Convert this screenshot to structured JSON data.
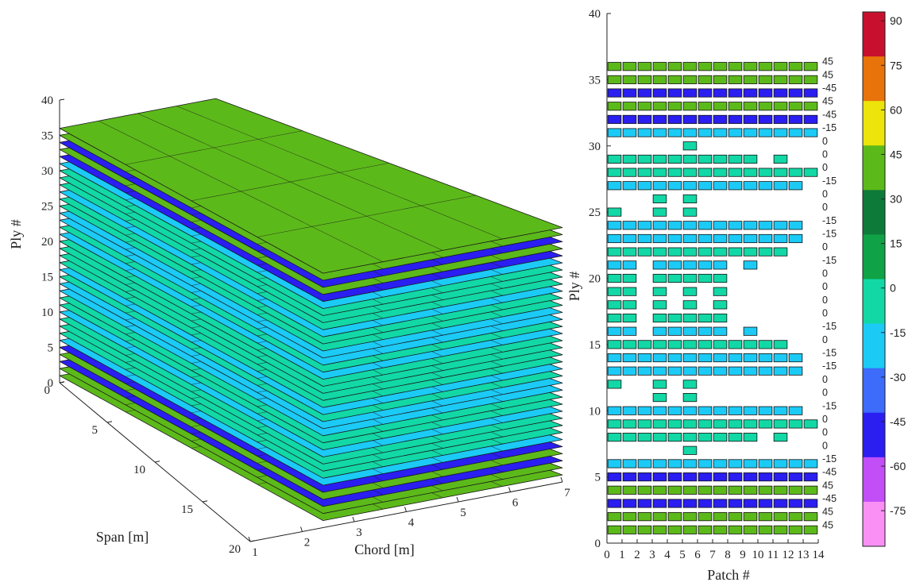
{
  "chart_data": [
    {
      "type": "3d-surface-stack",
      "zlabel": "Ply #",
      "xlabel": "Chord [m]",
      "ylabel": "Span [m]",
      "zticks": [
        "0",
        "5",
        "10",
        "15",
        "20",
        "25",
        "30",
        "35",
        "40"
      ],
      "xticks": [
        "1",
        "2",
        "3",
        "4",
        "5",
        "6",
        "7"
      ],
      "yticks": [
        "0",
        "5",
        "10",
        "15",
        "20"
      ],
      "zlim": [
        0,
        40
      ],
      "xlim": [
        1,
        7
      ],
      "ylim": [
        0,
        20
      ],
      "layers": [
        {
          "z": 1,
          "angle": 45
        },
        {
          "z": 2,
          "angle": 45
        },
        {
          "z": 3,
          "angle": -45
        },
        {
          "z": 4,
          "angle": 45
        },
        {
          "z": 5,
          "angle": -45
        },
        {
          "z": 6,
          "angle": -15
        },
        {
          "z": 7,
          "angle": 0
        },
        {
          "z": 8,
          "angle": 0
        },
        {
          "z": 9,
          "angle": 0
        },
        {
          "z": 10,
          "angle": -15
        },
        {
          "z": 11,
          "angle": 0
        },
        {
          "z": 12,
          "angle": 0
        },
        {
          "z": 13,
          "angle": -15
        },
        {
          "z": 14,
          "angle": -15
        },
        {
          "z": 15,
          "angle": 0
        },
        {
          "z": 16,
          "angle": -15
        },
        {
          "z": 17,
          "angle": 0
        },
        {
          "z": 18,
          "angle": 0
        },
        {
          "z": 19,
          "angle": 0
        },
        {
          "z": 20,
          "angle": 0
        },
        {
          "z": 21,
          "angle": -15
        },
        {
          "z": 22,
          "angle": 0
        },
        {
          "z": 23,
          "angle": -15
        },
        {
          "z": 24,
          "angle": -15
        },
        {
          "z": 25,
          "angle": 0
        },
        {
          "z": 26,
          "angle": 0
        },
        {
          "z": 27,
          "angle": -15
        },
        {
          "z": 28,
          "angle": 0
        },
        {
          "z": 29,
          "angle": 0
        },
        {
          "z": 30,
          "angle": 0
        },
        {
          "z": 31,
          "angle": -15
        },
        {
          "z": 32,
          "angle": -45
        },
        {
          "z": 33,
          "angle": 45
        },
        {
          "z": 34,
          "angle": -45
        },
        {
          "z": 35,
          "angle": 45
        },
        {
          "z": 36,
          "angle": 45
        }
      ]
    },
    {
      "type": "heatmap",
      "xlabel": "Patch #",
      "ylabel": "Ply #",
      "xticks": [
        "0",
        "1",
        "2",
        "3",
        "4",
        "5",
        "6",
        "7",
        "8",
        "9",
        "10",
        "11",
        "12",
        "13",
        "14"
      ],
      "yticks": [
        "0",
        "5",
        "10",
        "15",
        "20",
        "25",
        "30",
        "35",
        "40"
      ],
      "xlim": [
        0,
        14
      ],
      "ylim": [
        0,
        40
      ],
      "plies": [
        {
          "ply": 1,
          "label": "45",
          "angle": 45,
          "patches": [
            0,
            1,
            2,
            3,
            4,
            5,
            6,
            7,
            8,
            9,
            10,
            11,
            12,
            13
          ]
        },
        {
          "ply": 2,
          "label": "45",
          "angle": 45,
          "patches": [
            0,
            1,
            2,
            3,
            4,
            5,
            6,
            7,
            8,
            9,
            10,
            11,
            12,
            13
          ]
        },
        {
          "ply": 3,
          "label": "-45",
          "angle": -45,
          "patches": [
            0,
            1,
            2,
            3,
            4,
            5,
            6,
            7,
            8,
            9,
            10,
            11,
            12,
            13
          ]
        },
        {
          "ply": 4,
          "label": "45",
          "angle": 45,
          "patches": [
            0,
            1,
            2,
            3,
            4,
            5,
            6,
            7,
            8,
            9,
            10,
            11,
            12,
            13
          ]
        },
        {
          "ply": 5,
          "label": "-45",
          "angle": -45,
          "patches": [
            0,
            1,
            2,
            3,
            4,
            5,
            6,
            7,
            8,
            9,
            10,
            11,
            12,
            13
          ]
        },
        {
          "ply": 6,
          "label": "-15",
          "angle": -15,
          "patches": [
            0,
            1,
            2,
            3,
            4,
            5,
            6,
            7,
            8,
            9,
            10,
            11,
            12,
            13
          ]
        },
        {
          "ply": 7,
          "label": "0",
          "angle": 0,
          "patches": [
            5
          ]
        },
        {
          "ply": 8,
          "label": "0",
          "angle": 0,
          "patches": [
            0,
            1,
            2,
            3,
            4,
            5,
            6,
            7,
            8,
            9,
            11
          ]
        },
        {
          "ply": 9,
          "label": "0",
          "angle": 0,
          "patches": [
            0,
            1,
            2,
            3,
            4,
            5,
            6,
            7,
            8,
            9,
            10,
            11,
            12,
            13
          ]
        },
        {
          "ply": 10,
          "label": "-15",
          "angle": -15,
          "patches": [
            0,
            1,
            2,
            3,
            4,
            5,
            6,
            7,
            8,
            9,
            10,
            11,
            12
          ]
        },
        {
          "ply": 11,
          "label": "0",
          "angle": 0,
          "patches": [
            3,
            5
          ]
        },
        {
          "ply": 12,
          "label": "0",
          "angle": 0,
          "patches": [
            0,
            3,
            5
          ]
        },
        {
          "ply": 13,
          "label": "-15",
          "angle": -15,
          "patches": [
            0,
            1,
            2,
            3,
            4,
            5,
            6,
            7,
            8,
            9,
            10,
            11,
            12
          ]
        },
        {
          "ply": 14,
          "label": "-15",
          "angle": -15,
          "patches": [
            0,
            1,
            2,
            3,
            4,
            5,
            6,
            7,
            8,
            9,
            10,
            11,
            12
          ]
        },
        {
          "ply": 15,
          "label": "0",
          "angle": 0,
          "patches": [
            0,
            1,
            2,
            3,
            4,
            5,
            6,
            7,
            8,
            9,
            10,
            11
          ]
        },
        {
          "ply": 16,
          "label": "-15",
          "angle": -15,
          "patches": [
            0,
            1,
            3,
            4,
            5,
            6,
            7,
            9
          ]
        },
        {
          "ply": 17,
          "label": "0",
          "angle": 0,
          "patches": [
            0,
            1,
            3,
            4,
            5,
            6,
            7
          ]
        },
        {
          "ply": 18,
          "label": "0",
          "angle": 0,
          "patches": [
            0,
            1,
            3,
            5,
            7
          ]
        },
        {
          "ply": 19,
          "label": "0",
          "angle": 0,
          "patches": [
            0,
            1,
            3,
            5,
            7
          ]
        },
        {
          "ply": 20,
          "label": "0",
          "angle": 0,
          "patches": [
            0,
            1,
            3,
            4,
            5,
            6,
            7
          ]
        },
        {
          "ply": 21,
          "label": "-15",
          "angle": -15,
          "patches": [
            0,
            1,
            3,
            4,
            5,
            6,
            7,
            9
          ]
        },
        {
          "ply": 22,
          "label": "0",
          "angle": 0,
          "patches": [
            0,
            1,
            2,
            3,
            4,
            5,
            6,
            7,
            8,
            9,
            10,
            11
          ]
        },
        {
          "ply": 23,
          "label": "-15",
          "angle": -15,
          "patches": [
            0,
            1,
            2,
            3,
            4,
            5,
            6,
            7,
            8,
            9,
            10,
            11,
            12
          ]
        },
        {
          "ply": 24,
          "label": "-15",
          "angle": -15,
          "patches": [
            0,
            1,
            2,
            3,
            4,
            5,
            6,
            7,
            8,
            9,
            10,
            11,
            12
          ]
        },
        {
          "ply": 25,
          "label": "0",
          "angle": 0,
          "patches": [
            0,
            3,
            5
          ]
        },
        {
          "ply": 26,
          "label": "0",
          "angle": 0,
          "patches": [
            3,
            5
          ]
        },
        {
          "ply": 27,
          "label": "-15",
          "angle": -15,
          "patches": [
            0,
            1,
            2,
            3,
            4,
            5,
            6,
            7,
            8,
            9,
            10,
            11,
            12
          ]
        },
        {
          "ply": 28,
          "label": "0",
          "angle": 0,
          "patches": [
            0,
            1,
            2,
            3,
            4,
            5,
            6,
            7,
            8,
            9,
            10,
            11,
            12,
            13
          ]
        },
        {
          "ply": 29,
          "label": "0",
          "angle": 0,
          "patches": [
            0,
            1,
            2,
            3,
            4,
            5,
            6,
            7,
            8,
            9,
            11
          ]
        },
        {
          "ply": 30,
          "label": "0",
          "angle": 0,
          "patches": [
            5
          ]
        },
        {
          "ply": 31,
          "label": "-15",
          "angle": -15,
          "patches": [
            0,
            1,
            2,
            3,
            4,
            5,
            6,
            7,
            8,
            9,
            10,
            11,
            12,
            13
          ]
        },
        {
          "ply": 32,
          "label": "-45",
          "angle": -45,
          "patches": [
            0,
            1,
            2,
            3,
            4,
            5,
            6,
            7,
            8,
            9,
            10,
            11,
            12,
            13
          ]
        },
        {
          "ply": 33,
          "label": "45",
          "angle": 45,
          "patches": [
            0,
            1,
            2,
            3,
            4,
            5,
            6,
            7,
            8,
            9,
            10,
            11,
            12,
            13
          ]
        },
        {
          "ply": 34,
          "label": "-45",
          "angle": -45,
          "patches": [
            0,
            1,
            2,
            3,
            4,
            5,
            6,
            7,
            8,
            9,
            10,
            11,
            12,
            13
          ]
        },
        {
          "ply": 35,
          "label": "45",
          "angle": 45,
          "patches": [
            0,
            1,
            2,
            3,
            4,
            5,
            6,
            7,
            8,
            9,
            10,
            11,
            12,
            13
          ]
        },
        {
          "ply": 36,
          "label": "45",
          "angle": 45,
          "patches": [
            0,
            1,
            2,
            3,
            4,
            5,
            6,
            7,
            8,
            9,
            10,
            11,
            12,
            13
          ]
        }
      ]
    },
    {
      "type": "colorbar",
      "clim": [
        -75,
        90
      ],
      "ticks": [
        "90",
        "75",
        "60",
        "45",
        "30",
        "15",
        "0",
        "-15",
        "-30",
        "-45",
        "-60",
        "-75"
      ],
      "bins": [
        {
          "angle": 90,
          "color": "#c8102e"
        },
        {
          "angle": 75,
          "color": "#e8730a"
        },
        {
          "angle": 60,
          "color": "#ece40a"
        },
        {
          "angle": 45,
          "color": "#5cb91a"
        },
        {
          "angle": 30,
          "color": "#0e7a3a"
        },
        {
          "angle": 15,
          "color": "#0fa246"
        },
        {
          "angle": 0,
          "color": "#12d8a6"
        },
        {
          "angle": -15,
          "color": "#1ccaf6"
        },
        {
          "angle": -30,
          "color": "#3d6bfa"
        },
        {
          "angle": -45,
          "color": "#2a1ef0"
        },
        {
          "angle": -60,
          "color": "#c24ef7"
        },
        {
          "angle": -75,
          "color": "#fa8ff5"
        }
      ]
    }
  ]
}
